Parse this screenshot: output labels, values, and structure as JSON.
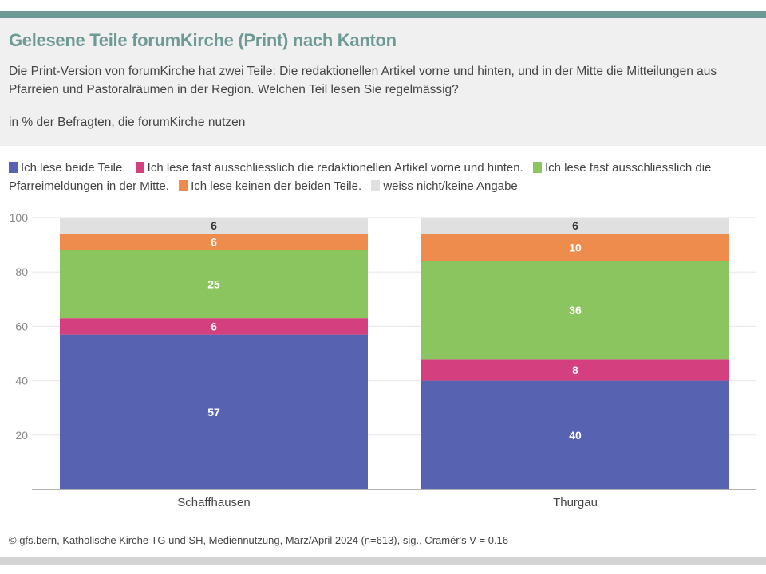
{
  "header": {
    "title": "Gelesene Teile forumKirche (Print) nach Kanton",
    "subtitle": "Die Print-Version von forumKirche hat zwei Teile: Die redaktionellen Artikel vorne und hinten, und in der Mitte die Mitteilungen aus Pfarreien und Pastoralräumen in der Region. Welchen Teil lesen Sie regelmässig?",
    "note": "in % der Befragten, die forumKirche nutzen"
  },
  "footer": "© gfs.bern, Katholische Kirche TG und SH, Mediennutzung, März/April 2024 (n=613), sig., Cramér's V = 0.16",
  "chart_data": {
    "type": "bar",
    "stacked": true,
    "title": "Gelesene Teile forumKirche (Print) nach Kanton",
    "categories": [
      "Schaffhausen",
      "Thurgau"
    ],
    "ylim": [
      0,
      100
    ],
    "yticks": [
      20,
      40,
      60,
      80,
      100
    ],
    "grid": true,
    "legend_position": "top",
    "series": [
      {
        "name": "Ich lese beide Teile.",
        "color": "#5763b0",
        "values": [
          57,
          40
        ]
      },
      {
        "name": "Ich lese fast ausschliesslich die redaktionellen Artikel vorne und hinten.",
        "color": "#d43f7f",
        "values": [
          6,
          8
        ]
      },
      {
        "name": "Ich lese fast ausschliesslich die Pfarreimeldungen in der Mitte.",
        "color": "#8bc560",
        "values": [
          25,
          36
        ]
      },
      {
        "name": "Ich lese keinen der beiden Teile.",
        "color": "#ee8c4e",
        "values": [
          6,
          10
        ]
      },
      {
        "name": "weiss nicht/keine Angabe",
        "color": "#e0e0e0",
        "values": [
          6,
          6
        ]
      }
    ]
  }
}
